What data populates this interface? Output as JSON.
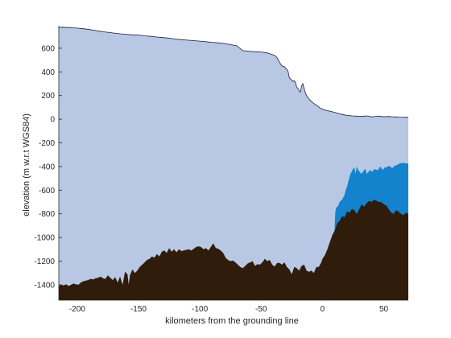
{
  "chart_data": {
    "type": "area",
    "title": "",
    "xlabel": "kilometers from the grounding line",
    "ylabel": "elevation (m w.r.t WGS84)",
    "xlim": [
      -215,
      70
    ],
    "ylim": [
      -1530,
      790
    ],
    "xticks": [
      -200,
      -150,
      -100,
      -50,
      0,
      50
    ],
    "yticks": [
      -1400,
      -1200,
      -1000,
      -800,
      -600,
      -400,
      -200,
      0,
      200,
      400,
      600
    ],
    "grid": false,
    "legend": "none",
    "series": [
      {
        "role": "ice",
        "color": "#b8c8e4",
        "upper_x": [
          -215,
          -212,
          -208,
          -204,
          -200,
          -195,
          -190,
          -185,
          -180,
          -175,
          -170,
          -165,
          -160,
          -155,
          -150,
          -145,
          -140,
          -135,
          -130,
          -125,
          -120,
          -115,
          -110,
          -105,
          -100,
          -95,
          -90,
          -85,
          -80,
          -75,
          -70,
          -65,
          -60,
          -55,
          -50,
          -45,
          -42,
          -39,
          -37,
          -35,
          -33,
          -31,
          -30,
          -29,
          -28,
          -27,
          -26,
          -25,
          -24,
          -23,
          -22,
          -21,
          -20,
          -19,
          -18,
          -17,
          -16,
          -15,
          -14,
          -13,
          -12,
          -10,
          -8,
          -6,
          -4,
          -2,
          0,
          2,
          4,
          6,
          8,
          10,
          12,
          14,
          16,
          18,
          20,
          22,
          24,
          26,
          28,
          30,
          32,
          34,
          36,
          38,
          40,
          42,
          44,
          46,
          48,
          50,
          52,
          54,
          56,
          58,
          60,
          62,
          64,
          66,
          68,
          70
        ],
        "upper_y": [
          775,
          778,
          775,
          772,
          770,
          765,
          758,
          750,
          740,
          735,
          728,
          722,
          718,
          713,
          712,
          705,
          700,
          695,
          690,
          685,
          678,
          672,
          668,
          664,
          660,
          655,
          650,
          645,
          640,
          630,
          622,
          580,
          575,
          570,
          568,
          560,
          550,
          540,
          520,
          480,
          450,
          445,
          430,
          420,
          400,
          350,
          340,
          330,
          320,
          325,
          310,
          270,
          260,
          240,
          230,
          280,
          300,
          260,
          225,
          200,
          185,
          160,
          140,
          125,
          112,
          95,
          85,
          78,
          72,
          68,
          63,
          58,
          52,
          45,
          40,
          36,
          32,
          30,
          28,
          27,
          26,
          24,
          23,
          26,
          28,
          25,
          20,
          22,
          25,
          26,
          24,
          20,
          22,
          23,
          21,
          20,
          19,
          18,
          17,
          17,
          16,
          16
        ]
      },
      {
        "role": "water",
        "color": "#1283cc",
        "upper_x": [
          10,
          10.5,
          11,
          11.5,
          12,
          13,
          14,
          15,
          16,
          17,
          18,
          19,
          20,
          21,
          22,
          23,
          24,
          25,
          26,
          27,
          28,
          29,
          30,
          31,
          32,
          33,
          34,
          35,
          36,
          37,
          38,
          39,
          40,
          41,
          42,
          43,
          44,
          45,
          46,
          47,
          48,
          49,
          50,
          51,
          52,
          53,
          54,
          55,
          56,
          57,
          58,
          59,
          60,
          61,
          62,
          63,
          64,
          65,
          66,
          67,
          68,
          69,
          70
        ],
        "upper_y": [
          -900,
          -780,
          -760,
          -745,
          -740,
          -730,
          -700,
          -690,
          -680,
          -660,
          -640,
          -600,
          -570,
          -530,
          -490,
          -460,
          -440,
          -420,
          -410,
          -460,
          -400,
          -430,
          -440,
          -455,
          -460,
          -445,
          -430,
          -420,
          -465,
          -450,
          -440,
          -430,
          -440,
          -445,
          -420,
          -425,
          -428,
          -430,
          -420,
          -400,
          -410,
          -430,
          -420,
          -405,
          -410,
          -400,
          -395,
          -400,
          -405,
          -415,
          -400,
          -395,
          -390,
          -385,
          -380,
          -375,
          -370,
          -372,
          -368,
          -372,
          -375,
          -374,
          -373
        ]
      },
      {
        "role": "bed",
        "color": "#301c0a",
        "upper_x": [
          -215,
          -213,
          -211,
          -209,
          -207,
          -205,
          -203,
          -201,
          -199,
          -197,
          -195,
          -193,
          -191,
          -189,
          -187,
          -185,
          -183,
          -181,
          -179,
          -177,
          -175,
          -173,
          -171,
          -169,
          -167,
          -165,
          -163,
          -161,
          -159,
          -158,
          -157,
          -155,
          -153,
          -151,
          -149,
          -147,
          -145,
          -143,
          -141,
          -139,
          -137,
          -135,
          -133,
          -131,
          -129,
          -127,
          -125,
          -123,
          -121,
          -119,
          -117,
          -115,
          -113,
          -111,
          -109,
          -107,
          -105,
          -103,
          -101,
          -99,
          -97,
          -95,
          -93,
          -91,
          -89,
          -87,
          -85,
          -83,
          -81,
          -79,
          -77,
          -75,
          -73,
          -71,
          -69,
          -67,
          -65,
          -63,
          -61,
          -59,
          -57,
          -55,
          -53,
          -51,
          -49,
          -47,
          -45,
          -43,
          -41,
          -39,
          -37,
          -35,
          -33,
          -31,
          -29,
          -27,
          -25,
          -23,
          -21,
          -19,
          -17,
          -15,
          -13,
          -11,
          -9,
          -7,
          -5,
          -3,
          -1,
          0,
          2,
          4,
          6,
          8,
          10,
          12,
          14,
          16,
          18,
          20,
          22,
          24,
          26,
          28,
          30,
          32,
          34,
          36,
          38,
          40,
          42,
          44,
          46,
          48,
          50,
          52,
          54,
          56,
          58,
          60,
          62,
          64,
          66,
          68,
          70
        ],
        "upper_y": [
          -1410,
          -1400,
          -1405,
          -1395,
          -1410,
          -1400,
          -1390,
          -1395,
          -1400,
          -1380,
          -1370,
          -1365,
          -1360,
          -1350,
          -1355,
          -1345,
          -1340,
          -1330,
          -1345,
          -1350,
          -1320,
          -1340,
          -1360,
          -1335,
          -1380,
          -1330,
          -1400,
          -1290,
          -1310,
          -1400,
          -1320,
          -1270,
          -1300,
          -1280,
          -1250,
          -1230,
          -1210,
          -1190,
          -1180,
          -1160,
          -1170,
          -1140,
          -1160,
          -1120,
          -1110,
          -1130,
          -1090,
          -1120,
          -1100,
          -1125,
          -1100,
          -1115,
          -1110,
          -1105,
          -1100,
          -1110,
          -1095,
          -1080,
          -1075,
          -1080,
          -1100,
          -1090,
          -1110,
          -1080,
          -1050,
          -1090,
          -1095,
          -1110,
          -1130,
          -1170,
          -1190,
          -1200,
          -1195,
          -1210,
          -1230,
          -1250,
          -1260,
          -1240,
          -1220,
          -1210,
          -1200,
          -1240,
          -1225,
          -1230,
          -1210,
          -1180,
          -1200,
          -1190,
          -1230,
          -1245,
          -1215,
          -1215,
          -1230,
          -1210,
          -1250,
          -1270,
          -1310,
          -1250,
          -1260,
          -1280,
          -1240,
          -1230,
          -1280,
          -1290,
          -1280,
          -1300,
          -1250,
          -1250,
          -1210,
          -1180,
          -1150,
          -1100,
          -1040,
          -980,
          -940,
          -880,
          -860,
          -820,
          -830,
          -780,
          -790,
          -760,
          -770,
          -800,
          -760,
          -720,
          -740,
          -710,
          -690,
          -700,
          -680,
          -690,
          -700,
          -700,
          -720,
          -730,
          -760,
          -790,
          -800,
          -770,
          -780,
          -800,
          -810,
          -790,
          -800
        ]
      }
    ]
  }
}
